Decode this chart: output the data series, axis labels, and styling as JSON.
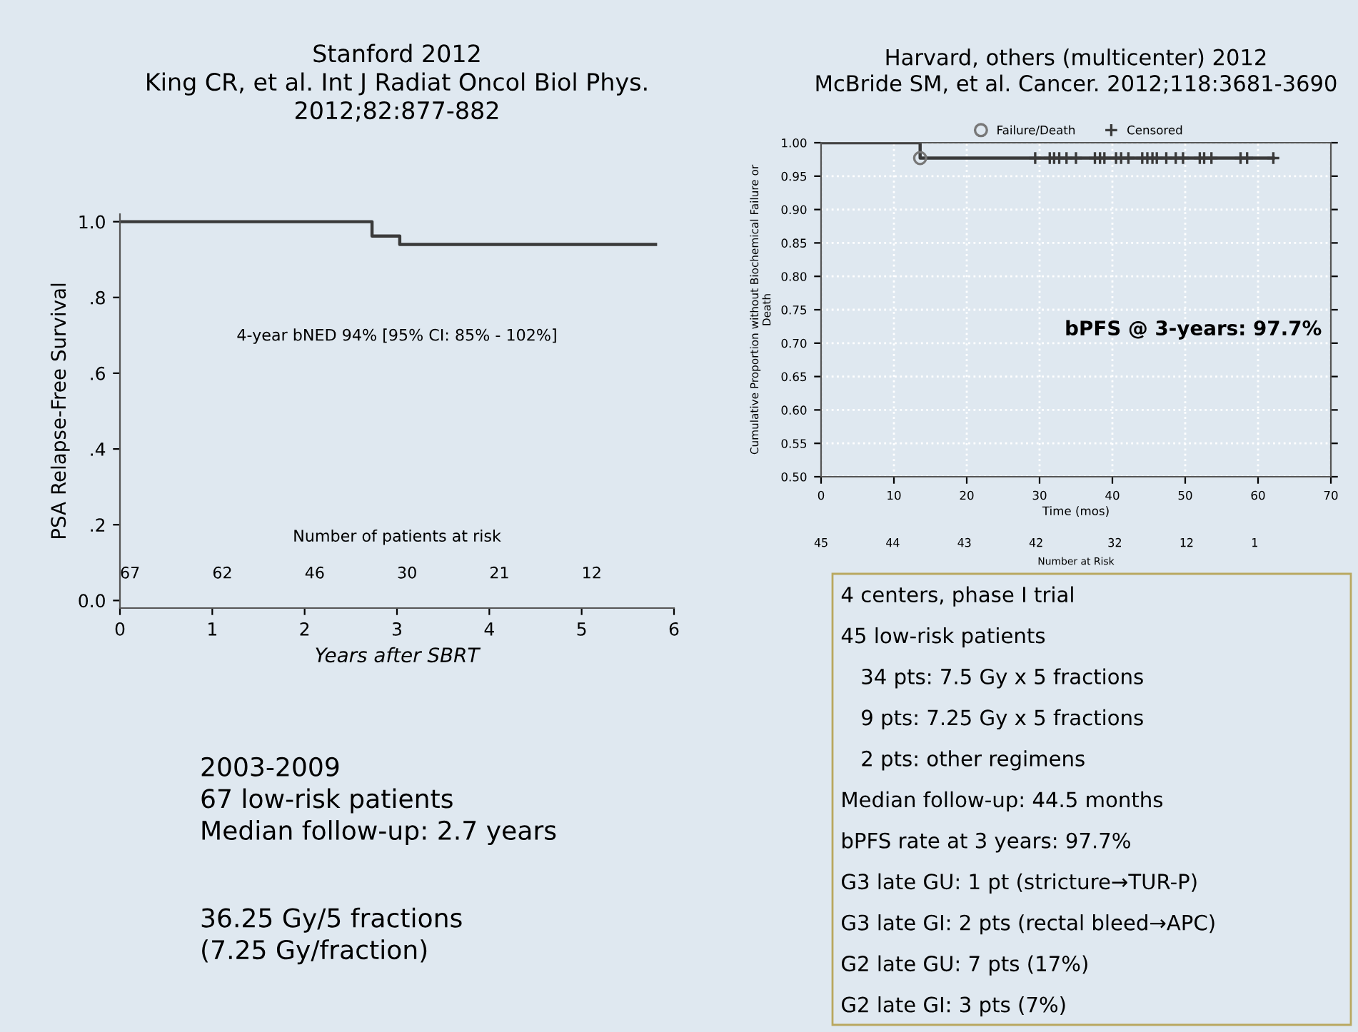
{
  "chart_data": [
    {
      "type": "step",
      "title": "Stanford 2012\nKing CR, et al. Int J Radiat Oncol Biol Phys.\n2012;82:877-882",
      "xlabel": "Years after SBRT",
      "ylabel": "PSA Relapse-Free Survival",
      "xlim": [
        0,
        6
      ],
      "xticks": [
        0,
        1,
        2,
        3,
        4,
        5,
        6
      ],
      "ylim": [
        -0.02,
        1.02
      ],
      "yticks": [
        {
          "value": 0,
          "label": "0.0"
        },
        {
          "value": 0.2,
          "label": ".2"
        },
        {
          "value": 0.4,
          "label": ".4"
        },
        {
          "value": 0.6,
          "label": ".6"
        },
        {
          "value": 0.8,
          "label": ".8"
        },
        {
          "value": 1.0,
          "label": "1.0"
        }
      ],
      "grid": false,
      "legend": false,
      "series": [
        {
          "color": "#3a3a3a",
          "x": [
            0,
            2.73,
            3.03,
            5.8
          ],
          "values": [
            1.0,
            0.962,
            0.94,
            0.94
          ]
        }
      ],
      "annotations": [
        "4-year bNED 94% [95% CI: 85% - 102%]",
        "Number of patients at risk",
        "67",
        "62",
        "46",
        "30",
        "21",
        "12"
      ]
    },
    {
      "type": "step",
      "title": "Harvard, others (multicenter) 2012\nMcBride SM, et al. Cancer. 2012;118:3681-3690",
      "xlabel": "Time (mos)",
      "ylabel": "Cumulative Proportion without Biochemical Failure or\nDeath",
      "xlim": [
        0,
        70
      ],
      "xticks": [
        0,
        10,
        20,
        30,
        40,
        50,
        60,
        70
      ],
      "ylim": [
        0.5,
        1.0
      ],
      "yticks": [
        {
          "value": 0.5,
          "label": "0.50"
        },
        {
          "value": 0.55,
          "label": "0.55"
        },
        {
          "value": 0.6,
          "label": "0.60"
        },
        {
          "value": 0.65,
          "label": "0.65"
        },
        {
          "value": 0.7,
          "label": "0.70"
        },
        {
          "value": 0.75,
          "label": "0.75"
        },
        {
          "value": 0.8,
          "label": "0.80"
        },
        {
          "value": 0.85,
          "label": "0.85"
        },
        {
          "value": 0.9,
          "label": "0.90"
        },
        {
          "value": 0.95,
          "label": "0.95"
        },
        {
          "value": 1.0,
          "label": "1.00"
        }
      ],
      "grid": true,
      "legend": "top",
      "series": [
        {
          "color": "#3a3a3a",
          "x": [
            0,
            13.6,
            62.1
          ],
          "values": [
            1.0,
            0.977,
            0.977
          ]
        },
        {
          "type": "scatter",
          "name": "Failure/Death",
          "marker": "circle",
          "color": "#777777",
          "x": [
            13.6
          ],
          "values": [
            0.977
          ]
        },
        {
          "type": "scatter",
          "name": "Censored",
          "marker": "cross",
          "color": "#3a3a3a",
          "x": [
            29.4,
            31.4,
            32.0,
            32.7,
            33.7,
            35.0,
            37.6,
            38.3,
            38.9,
            40.5,
            41.2,
            42.2,
            44.1,
            44.8,
            45.5,
            46.1,
            47.4,
            48.7,
            49.7,
            52.0,
            52.6,
            53.6,
            57.6,
            58.5,
            62.1
          ],
          "values": [
            0.977,
            0.977,
            0.977,
            0.977,
            0.977,
            0.977,
            0.977,
            0.977,
            0.977,
            0.977,
            0.977,
            0.977,
            0.977,
            0.977,
            0.977,
            0.977,
            0.977,
            0.977,
            0.977,
            0.977,
            0.977,
            0.977,
            0.977,
            0.977,
            0.977
          ]
        }
      ],
      "annotations": [
        "bPFS @ 3-years: 97.7%",
        "Number at Risk",
        "45 44 43 42 32 12 1"
      ]
    },
    {
      "type": "other",
      "annotations": [
        "2003-2009\n67 low-risk patients\nMedian follow-up: 2.7 years",
        "36.25 Gy/5 fractions\n(7.25 Gy/fraction)"
      ]
    },
    {
      "type": "other",
      "annotations": [
        "4 centers, phase I trial",
        "45 low-risk patients",
        "   34 pts: 7.5 Gy x 5 fractions",
        "   9 pts: 7.25 Gy x 5 fractions",
        "   2 pts: other regimens",
        "Median follow-up: 44.5 months",
        "bPFS rate at 3 years: 97.7%",
        "G3 late GU: 1 pt (stricture→TUR-P)",
        "G3 late GI: 2 pts (rectal bleed→APC)",
        "G2 late GU: 7 pts (17%)",
        "G2 late GI: 3 pts (7%)"
      ]
    }
  ]
}
